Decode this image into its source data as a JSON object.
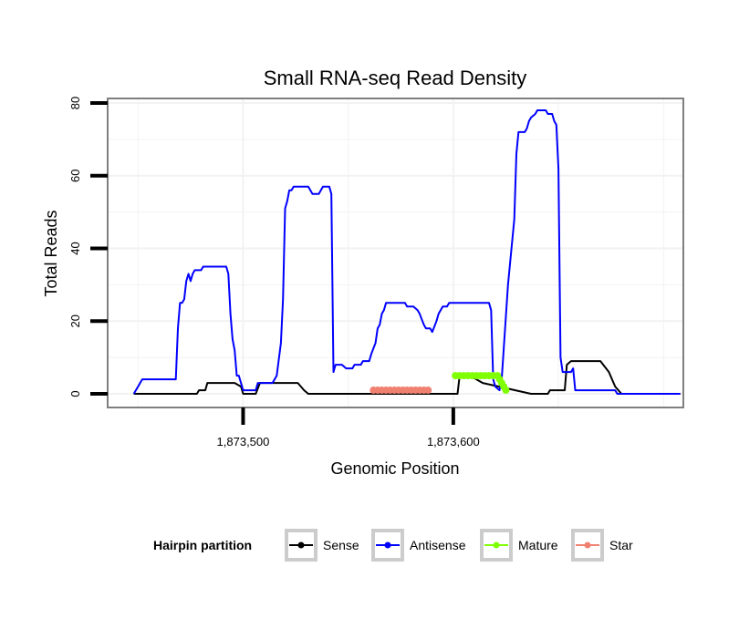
{
  "chart_data": {
    "type": "line",
    "title": "Small RNA-seq Read Density",
    "xlabel": "Genomic Position",
    "ylabel": "Total Reads",
    "xlim": [
      1873436,
      1873709
    ],
    "ylim": [
      -3.5,
      81
    ],
    "x_ticks": [
      1873500,
      1873600
    ],
    "x_tick_labels": [
      "1,873,500",
      "1,873,600"
    ],
    "y_ticks": [
      0,
      20,
      40,
      60,
      80
    ],
    "y_tick_labels": [
      "0",
      "20",
      "40",
      "60",
      "80"
    ],
    "grid": true,
    "legend": {
      "title": "Hairpin partition",
      "position": "bottom",
      "entries": [
        "Sense",
        "Antisense",
        "Mature",
        "Star"
      ]
    },
    "series": [
      {
        "name": "Sense",
        "color": "#000000",
        "points": [
          [
            1873448,
            0
          ],
          [
            1873478,
            0
          ],
          [
            1873479,
            1
          ],
          [
            1873482,
            1
          ],
          [
            1873483,
            3
          ],
          [
            1873496,
            3
          ],
          [
            1873499,
            2
          ],
          [
            1873500,
            0
          ],
          [
            1873506,
            0
          ],
          [
            1873508,
            3
          ],
          [
            1873526,
            3
          ],
          [
            1873529,
            1
          ],
          [
            1873531,
            0
          ],
          [
            1873602,
            0
          ],
          [
            1873603,
            5
          ],
          [
            1873608,
            5
          ],
          [
            1873614,
            3
          ],
          [
            1873637,
            0
          ],
          [
            1873645,
            0
          ],
          [
            1873646,
            1
          ],
          [
            1873653,
            1
          ],
          [
            1873654,
            8
          ],
          [
            1873656,
            9
          ],
          [
            1873670,
            9
          ],
          [
            1873674,
            6
          ],
          [
            1873677,
            2
          ],
          [
            1873680,
            0
          ],
          [
            1873698,
            0
          ],
          [
            1873708,
            0
          ]
        ]
      },
      {
        "name": "Antisense",
        "color": "#0000ff",
        "points": [
          [
            1873448,
            0
          ],
          [
            1873450,
            2
          ],
          [
            1873452,
            4
          ],
          [
            1873468,
            4
          ],
          [
            1873469,
            18
          ],
          [
            1873470,
            25
          ],
          [
            1873471,
            25
          ],
          [
            1873472,
            26
          ],
          [
            1873473,
            31
          ],
          [
            1873474,
            33
          ],
          [
            1873475,
            31
          ],
          [
            1873476,
            33
          ],
          [
            1873477,
            34
          ],
          [
            1873480,
            34
          ],
          [
            1873481,
            35
          ],
          [
            1873492,
            35
          ],
          [
            1873493,
            33
          ],
          [
            1873494,
            22
          ],
          [
            1873495,
            15
          ],
          [
            1873496,
            12
          ],
          [
            1873497,
            5
          ],
          [
            1873498,
            5
          ],
          [
            1873500,
            1
          ],
          [
            1873506,
            1
          ],
          [
            1873507,
            3
          ],
          [
            1873510,
            3
          ],
          [
            1873514,
            3
          ],
          [
            1873516,
            5
          ],
          [
            1873518,
            14
          ],
          [
            1873519,
            26
          ],
          [
            1873520,
            51
          ],
          [
            1873521,
            53
          ],
          [
            1873522,
            56
          ],
          [
            1873523,
            56
          ],
          [
            1873524,
            57
          ],
          [
            1873531,
            57
          ],
          [
            1873533,
            55
          ],
          [
            1873536,
            55
          ],
          [
            1873537,
            56
          ],
          [
            1873538,
            57
          ],
          [
            1873541,
            57
          ],
          [
            1873542,
            55
          ],
          [
            1873543,
            6
          ],
          [
            1873544,
            8
          ],
          [
            1873547,
            8
          ],
          [
            1873549,
            7
          ],
          [
            1873552,
            7
          ],
          [
            1873553,
            8
          ],
          [
            1873556,
            8
          ],
          [
            1873557,
            9
          ],
          [
            1873560,
            9
          ],
          [
            1873561,
            11
          ],
          [
            1873563,
            14
          ],
          [
            1873564,
            18
          ],
          [
            1873565,
            19
          ],
          [
            1873566,
            22
          ],
          [
            1873567,
            23
          ],
          [
            1873568,
            25
          ],
          [
            1873577,
            25
          ],
          [
            1873578,
            24
          ],
          [
            1873581,
            24
          ],
          [
            1873583,
            23
          ],
          [
            1873584,
            22
          ],
          [
            1873586,
            19
          ],
          [
            1873587,
            18
          ],
          [
            1873589,
            18
          ],
          [
            1873590,
            17
          ],
          [
            1873592,
            20
          ],
          [
            1873593,
            22
          ],
          [
            1873594,
            23
          ],
          [
            1873595,
            24
          ],
          [
            1873597,
            24
          ],
          [
            1873598,
            25
          ],
          [
            1873617,
            25
          ],
          [
            1873618,
            23
          ],
          [
            1873619,
            4
          ],
          [
            1873620,
            2
          ],
          [
            1873622,
            1
          ],
          [
            1873623,
            4
          ],
          [
            1873626,
            30
          ],
          [
            1873629,
            48
          ],
          [
            1873630,
            66
          ],
          [
            1873631,
            72
          ],
          [
            1873634,
            72
          ],
          [
            1873635,
            73
          ],
          [
            1873636,
            75
          ],
          [
            1873637,
            76
          ],
          [
            1873639,
            77
          ],
          [
            1873640,
            78
          ],
          [
            1873644,
            78
          ],
          [
            1873645,
            77
          ],
          [
            1873647,
            77
          ],
          [
            1873648,
            75
          ],
          [
            1873649,
            74
          ],
          [
            1873650,
            62
          ],
          [
            1873651,
            10
          ],
          [
            1873652,
            6
          ],
          [
            1873656,
            6
          ],
          [
            1873657,
            7
          ],
          [
            1873658,
            1
          ],
          [
            1873676,
            1
          ],
          [
            1873677,
            1
          ],
          [
            1873678,
            0
          ],
          [
            1873698,
            0
          ],
          [
            1873708,
            0
          ]
        ]
      },
      {
        "name": "Mature",
        "color": "#7fff00",
        "points": [
          [
            1873601,
            5
          ],
          [
            1873603,
            5
          ],
          [
            1873605,
            5
          ],
          [
            1873607,
            5
          ],
          [
            1873609,
            5
          ],
          [
            1873611,
            5
          ],
          [
            1873613,
            5
          ],
          [
            1873615,
            5
          ],
          [
            1873617,
            5
          ],
          [
            1873619,
            5
          ],
          [
            1873621,
            5
          ],
          [
            1873622,
            4
          ],
          [
            1873623,
            3
          ],
          [
            1873624,
            2
          ],
          [
            1873625,
            1
          ]
        ]
      },
      {
        "name": "Star",
        "color": "#f08070",
        "points": [
          [
            1873562,
            1
          ],
          [
            1873564,
            1
          ],
          [
            1873566,
            1
          ],
          [
            1873568,
            1
          ],
          [
            1873570,
            1
          ],
          [
            1873572,
            1
          ],
          [
            1873574,
            1
          ],
          [
            1873576,
            1
          ],
          [
            1873578,
            1
          ],
          [
            1873580,
            1
          ],
          [
            1873582,
            1
          ],
          [
            1873584,
            1
          ],
          [
            1873586,
            1
          ],
          [
            1873588,
            1
          ]
        ]
      }
    ]
  }
}
